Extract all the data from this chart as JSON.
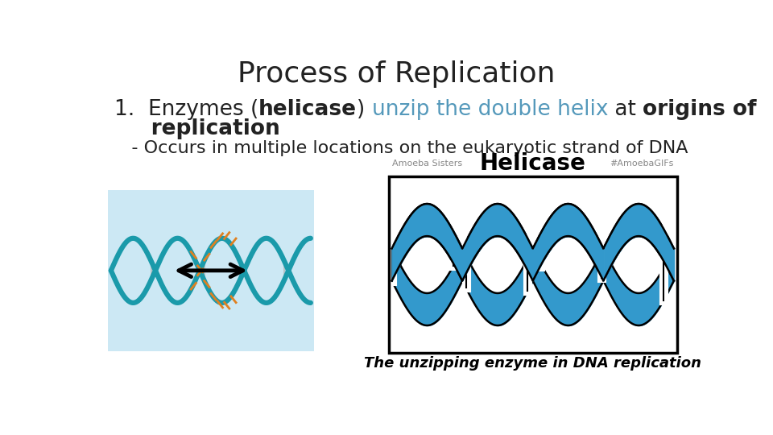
{
  "title": "Process of Replication",
  "title_fontsize": 26,
  "title_color": "#222222",
  "background_color": "#ffffff",
  "body_fontsize": 19,
  "line3_fontsize": 16,
  "line3": "   - Occurs in multiple locations on the eukaryotic strand of DNA",
  "line3_color": "#222222",
  "left_image_bg": "#cce8f4",
  "helicase_label": "Helicase",
  "caption": "The unzipping enzyme in DNA replication",
  "amoeba_left": "Amoeba Sisters",
  "amoeba_right": "#AmoebaGIFs",
  "blue_dna": "#3399cc",
  "blue_dna_dark": "#1a6a99",
  "teal_color": "#1a9aaa",
  "orange_color": "#e08020"
}
